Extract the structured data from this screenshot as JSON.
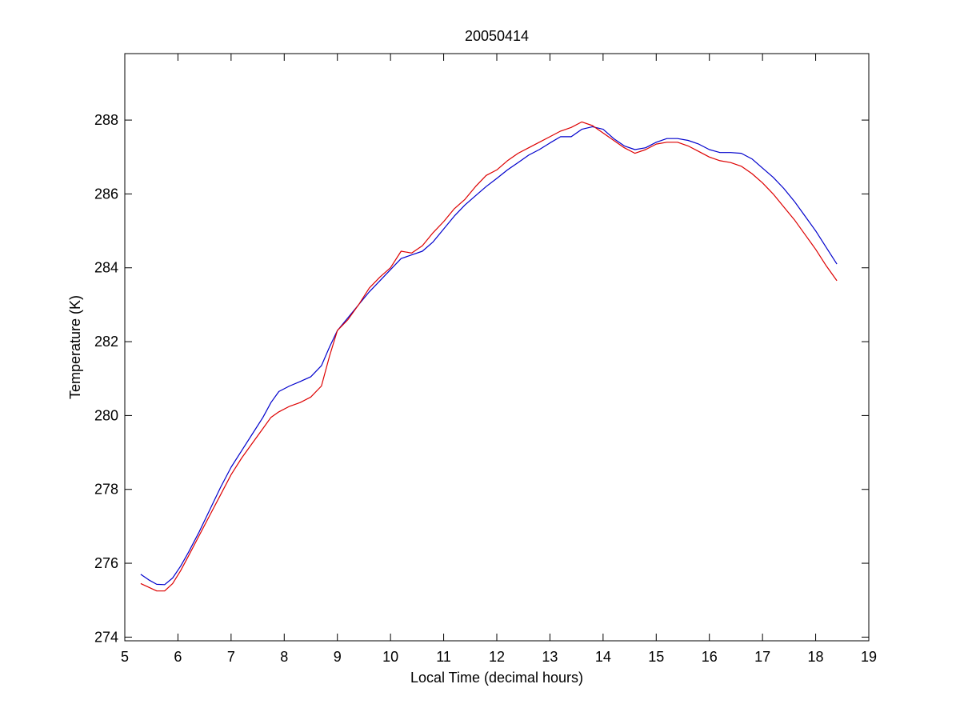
{
  "chart_data": {
    "type": "line",
    "title": "20050414",
    "xlabel": "Local Time (decimal hours)",
    "ylabel": "Temperature (K)",
    "xlim": [
      5,
      19
    ],
    "ylim": [
      273.9,
      289.8
    ],
    "xticks": [
      5,
      6,
      7,
      8,
      9,
      10,
      11,
      12,
      13,
      14,
      15,
      16,
      17,
      18,
      19
    ],
    "yticks": [
      274,
      276,
      278,
      280,
      282,
      284,
      286,
      288
    ],
    "grid": false,
    "legend": "none",
    "series": [
      {
        "color": "#0000cc",
        "points": [
          [
            5.3,
            275.7
          ],
          [
            5.45,
            275.55
          ],
          [
            5.6,
            275.43
          ],
          [
            5.75,
            275.42
          ],
          [
            5.9,
            275.6
          ],
          [
            6.05,
            275.92
          ],
          [
            6.2,
            276.3
          ],
          [
            6.4,
            276.85
          ],
          [
            6.6,
            277.45
          ],
          [
            6.8,
            278.05
          ],
          [
            7.0,
            278.6
          ],
          [
            7.2,
            279.05
          ],
          [
            7.4,
            279.5
          ],
          [
            7.6,
            279.95
          ],
          [
            7.75,
            280.35
          ],
          [
            7.9,
            280.65
          ],
          [
            8.1,
            280.8
          ],
          [
            8.3,
            280.92
          ],
          [
            8.5,
            281.05
          ],
          [
            8.7,
            281.35
          ],
          [
            8.85,
            281.85
          ],
          [
            9.0,
            282.3
          ],
          [
            9.2,
            282.65
          ],
          [
            9.4,
            283.0
          ],
          [
            9.6,
            283.35
          ],
          [
            9.8,
            283.65
          ],
          [
            10.0,
            283.95
          ],
          [
            10.2,
            284.25
          ],
          [
            10.4,
            284.35
          ],
          [
            10.6,
            284.45
          ],
          [
            10.8,
            284.7
          ],
          [
            11.0,
            285.05
          ],
          [
            11.2,
            285.4
          ],
          [
            11.4,
            285.7
          ],
          [
            11.6,
            285.95
          ],
          [
            11.8,
            286.2
          ],
          [
            12.0,
            286.42
          ],
          [
            12.2,
            286.65
          ],
          [
            12.4,
            286.85
          ],
          [
            12.6,
            287.05
          ],
          [
            12.8,
            287.2
          ],
          [
            13.0,
            287.38
          ],
          [
            13.2,
            287.55
          ],
          [
            13.4,
            287.55
          ],
          [
            13.6,
            287.75
          ],
          [
            13.8,
            287.82
          ],
          [
            14.0,
            287.75
          ],
          [
            14.2,
            287.5
          ],
          [
            14.4,
            287.3
          ],
          [
            14.6,
            287.2
          ],
          [
            14.8,
            287.25
          ],
          [
            15.0,
            287.4
          ],
          [
            15.2,
            287.5
          ],
          [
            15.4,
            287.5
          ],
          [
            15.6,
            287.45
          ],
          [
            15.8,
            287.35
          ],
          [
            16.0,
            287.2
          ],
          [
            16.2,
            287.12
          ],
          [
            16.4,
            287.12
          ],
          [
            16.6,
            287.1
          ],
          [
            16.8,
            286.95
          ],
          [
            17.0,
            286.7
          ],
          [
            17.2,
            286.45
          ],
          [
            17.4,
            286.15
          ],
          [
            17.6,
            285.8
          ],
          [
            17.8,
            285.4
          ],
          [
            18.0,
            285.0
          ],
          [
            18.2,
            284.55
          ],
          [
            18.4,
            284.1
          ]
        ]
      },
      {
        "color": "#dd0000",
        "points": [
          [
            5.3,
            275.45
          ],
          [
            5.45,
            275.35
          ],
          [
            5.6,
            275.25
          ],
          [
            5.75,
            275.25
          ],
          [
            5.9,
            275.45
          ],
          [
            6.05,
            275.8
          ],
          [
            6.2,
            276.2
          ],
          [
            6.4,
            276.75
          ],
          [
            6.6,
            277.3
          ],
          [
            6.8,
            277.85
          ],
          [
            7.0,
            278.4
          ],
          [
            7.2,
            278.85
          ],
          [
            7.4,
            279.25
          ],
          [
            7.6,
            279.65
          ],
          [
            7.75,
            279.95
          ],
          [
            7.9,
            280.1
          ],
          [
            8.1,
            280.25
          ],
          [
            8.3,
            280.35
          ],
          [
            8.5,
            280.5
          ],
          [
            8.7,
            280.8
          ],
          [
            8.85,
            281.6
          ],
          [
            9.0,
            282.3
          ],
          [
            9.2,
            282.6
          ],
          [
            9.4,
            283.0
          ],
          [
            9.6,
            283.45
          ],
          [
            9.8,
            283.75
          ],
          [
            10.0,
            284.0
          ],
          [
            10.2,
            284.45
          ],
          [
            10.4,
            284.4
          ],
          [
            10.6,
            284.6
          ],
          [
            10.8,
            284.95
          ],
          [
            11.0,
            285.25
          ],
          [
            11.2,
            285.6
          ],
          [
            11.4,
            285.85
          ],
          [
            11.6,
            286.2
          ],
          [
            11.8,
            286.5
          ],
          [
            12.0,
            286.65
          ],
          [
            12.2,
            286.9
          ],
          [
            12.4,
            287.1
          ],
          [
            12.6,
            287.25
          ],
          [
            12.8,
            287.4
          ],
          [
            13.0,
            287.55
          ],
          [
            13.2,
            287.7
          ],
          [
            13.4,
            287.8
          ],
          [
            13.6,
            287.95
          ],
          [
            13.8,
            287.85
          ],
          [
            14.0,
            287.65
          ],
          [
            14.2,
            287.45
          ],
          [
            14.4,
            287.25
          ],
          [
            14.6,
            287.1
          ],
          [
            14.8,
            287.2
          ],
          [
            15.0,
            287.35
          ],
          [
            15.2,
            287.4
          ],
          [
            15.4,
            287.4
          ],
          [
            15.6,
            287.3
          ],
          [
            15.8,
            287.15
          ],
          [
            16.0,
            287.0
          ],
          [
            16.2,
            286.9
          ],
          [
            16.4,
            286.85
          ],
          [
            16.6,
            286.75
          ],
          [
            16.8,
            286.55
          ],
          [
            17.0,
            286.3
          ],
          [
            17.2,
            286.0
          ],
          [
            17.4,
            285.65
          ],
          [
            17.6,
            285.3
          ],
          [
            17.8,
            284.9
          ],
          [
            18.0,
            284.5
          ],
          [
            18.2,
            284.05
          ],
          [
            18.4,
            283.65
          ]
        ]
      }
    ]
  }
}
